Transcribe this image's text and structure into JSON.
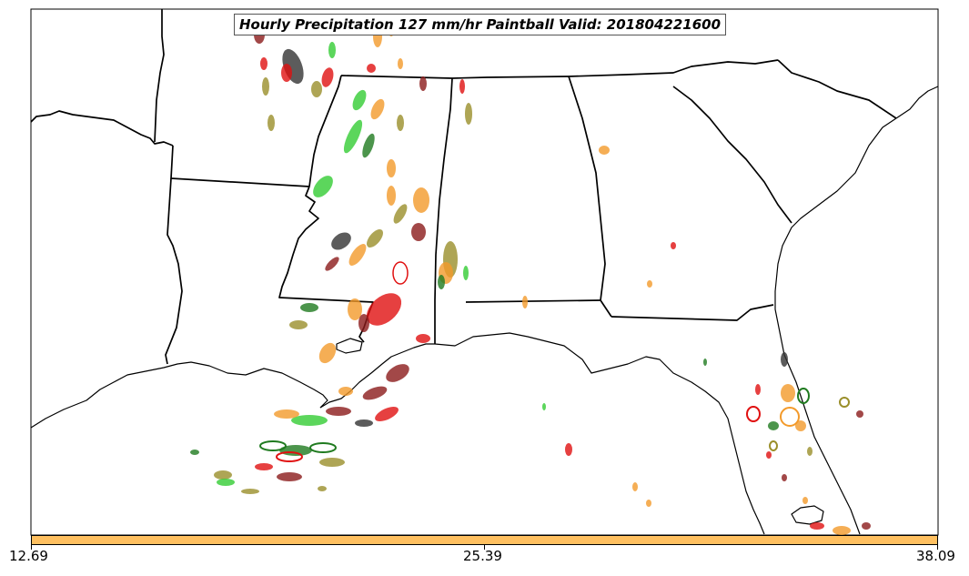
{
  "title": "Hourly Precipitation 127 mm/hr Paintball Valid: 201804221600",
  "colorbar": {
    "color": "#ffc060",
    "ticks": [
      "12.69",
      "25.39",
      "38.09"
    ]
  },
  "colors": {
    "lightgreen": "#33cc33",
    "darkgreen": "#1f7a1f",
    "red": "#e01010",
    "orange": "#f39a2a",
    "darkred": "#8b1a1a",
    "olive": "#9a8f2a",
    "gray": "#333333"
  }
}
